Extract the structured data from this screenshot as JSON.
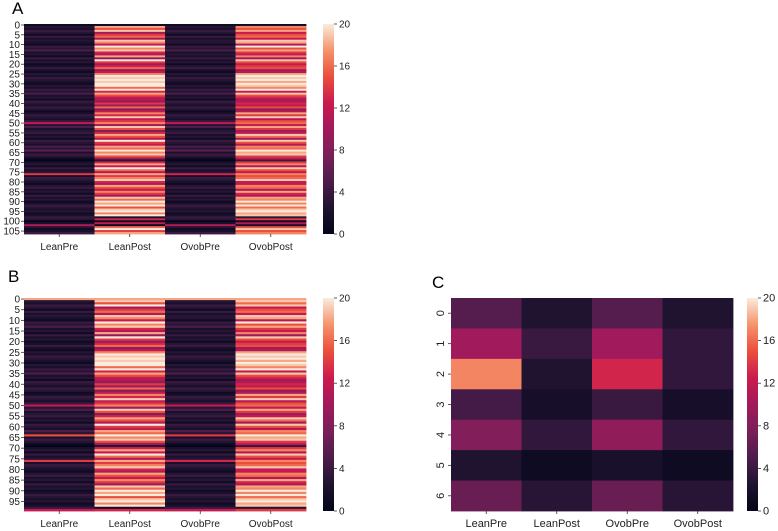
{
  "chart_data": [
    {
      "panel": "A",
      "type": "heatmap",
      "columns": [
        "LeanPre",
        "LeanPost",
        "OvobPre",
        "OvobPost"
      ],
      "row_tick_labels": [
        "0",
        "5",
        "10",
        "15",
        "20",
        "25",
        "30",
        "35",
        "40",
        "45",
        "50",
        "55",
        "60",
        "65",
        "70",
        "75",
        "80",
        "85",
        "90",
        "95",
        "100",
        "105"
      ],
      "row_count": 107,
      "row_tick_step": 5,
      "colorbar": {
        "min": 0,
        "max": 20,
        "ticks": [
          0,
          4,
          8,
          12,
          16,
          20
        ]
      },
      "colormap": "rocket",
      "values": [
        [
          1,
          1,
          1,
          1
        ],
        [
          3,
          18,
          3,
          17
        ],
        [
          2,
          15,
          2,
          15
        ],
        [
          4,
          19,
          4,
          18
        ],
        [
          3,
          10,
          3,
          12
        ],
        [
          1,
          14,
          1,
          15
        ],
        [
          4,
          16,
          4,
          16
        ],
        [
          2,
          11,
          2,
          12
        ],
        [
          3,
          19,
          3,
          19
        ],
        [
          2,
          17,
          3,
          18
        ],
        [
          1,
          12,
          1,
          11
        ],
        [
          4,
          20,
          4,
          20
        ],
        [
          3,
          17,
          3,
          15
        ],
        [
          5,
          19,
          5,
          18
        ],
        [
          2,
          13,
          2,
          14
        ],
        [
          3,
          11,
          3,
          12
        ],
        [
          1,
          18,
          2,
          17
        ],
        [
          4,
          9,
          4,
          10
        ],
        [
          2,
          20,
          2,
          19
        ],
        [
          3,
          14,
          3,
          15
        ],
        [
          1,
          10,
          1,
          12
        ],
        [
          2,
          13,
          3,
          14
        ],
        [
          4,
          16,
          4,
          15
        ],
        [
          2,
          9,
          2,
          10
        ],
        [
          1,
          12,
          1,
          11
        ],
        [
          3,
          17,
          3,
          18
        ],
        [
          2,
          20,
          2,
          20
        ],
        [
          4,
          19,
          4,
          19
        ],
        [
          3,
          20,
          3,
          20
        ],
        [
          2,
          19,
          2,
          18
        ],
        [
          1,
          20,
          1,
          20
        ],
        [
          3,
          20,
          3,
          19
        ],
        [
          2,
          16,
          2,
          17
        ],
        [
          4,
          20,
          4,
          20
        ],
        [
          3,
          13,
          3,
          12
        ],
        [
          5,
          18,
          5,
          19
        ],
        [
          2,
          15,
          2,
          15
        ],
        [
          3,
          12,
          3,
          13
        ],
        [
          1,
          11,
          1,
          10
        ],
        [
          4,
          9,
          4,
          11
        ],
        [
          3,
          14,
          3,
          13
        ],
        [
          2,
          10,
          2,
          12
        ],
        [
          4,
          16,
          4,
          15
        ],
        [
          3,
          8,
          3,
          9
        ],
        [
          1,
          12,
          1,
          11
        ],
        [
          2,
          17,
          2,
          18
        ],
        [
          4,
          13,
          4,
          14
        ],
        [
          3,
          19,
          3,
          19
        ],
        [
          2,
          12,
          2,
          11
        ],
        [
          4,
          14,
          4,
          15
        ],
        [
          12,
          17,
          12,
          16
        ],
        [
          3,
          10,
          3,
          12
        ],
        [
          5,
          19,
          5,
          18
        ],
        [
          2,
          15,
          2,
          14
        ],
        [
          3,
          8,
          3,
          10
        ],
        [
          4,
          13,
          4,
          12
        ],
        [
          2,
          18,
          2,
          19
        ],
        [
          3,
          15,
          3,
          16
        ],
        [
          1,
          11,
          1,
          10
        ],
        [
          4,
          20,
          4,
          19
        ],
        [
          3,
          14,
          3,
          15
        ],
        [
          2,
          12,
          2,
          11
        ],
        [
          5,
          18,
          5,
          17
        ],
        [
          3,
          16,
          3,
          16
        ],
        [
          6,
          20,
          6,
          20
        ],
        [
          2,
          17,
          2,
          18
        ],
        [
          4,
          19,
          4,
          19
        ],
        [
          3,
          15,
          3,
          14
        ],
        [
          1,
          10,
          1,
          12
        ],
        [
          0,
          3,
          0,
          4
        ],
        [
          2,
          13,
          2,
          14
        ],
        [
          3,
          18,
          3,
          17
        ],
        [
          1,
          12,
          1,
          11
        ],
        [
          4,
          20,
          4,
          19
        ],
        [
          2,
          16,
          2,
          15
        ],
        [
          3,
          11,
          3,
          12
        ],
        [
          14,
          18,
          13,
          17
        ],
        [
          2,
          14,
          2,
          15
        ],
        [
          4,
          17,
          4,
          16
        ],
        [
          3,
          19,
          3,
          19
        ],
        [
          2,
          13,
          2,
          12
        ],
        [
          1,
          11,
          1,
          12
        ],
        [
          3,
          18,
          3,
          17
        ],
        [
          4,
          15,
          4,
          16
        ],
        [
          2,
          12,
          2,
          11
        ],
        [
          3,
          17,
          3,
          18
        ],
        [
          1,
          14,
          1,
          13
        ],
        [
          4,
          10,
          4,
          11
        ],
        [
          2,
          19,
          2,
          18
        ],
        [
          3,
          16,
          3,
          17
        ],
        [
          1,
          20,
          1,
          20
        ],
        [
          2,
          18,
          2,
          17
        ],
        [
          4,
          20,
          4,
          20
        ],
        [
          3,
          15,
          3,
          16
        ],
        [
          2,
          19,
          2,
          19
        ],
        [
          3,
          20,
          3,
          20
        ],
        [
          1,
          17,
          1,
          18
        ],
        [
          2,
          20,
          2,
          19
        ],
        [
          4,
          2,
          4,
          3
        ],
        [
          3,
          13,
          3,
          14
        ],
        [
          0,
          1,
          0,
          1
        ],
        [
          2,
          12,
          2,
          11
        ],
        [
          11,
          1,
          11,
          2
        ],
        [
          3,
          16,
          3,
          15
        ],
        [
          1,
          20,
          1,
          19
        ],
        [
          2,
          14,
          2,
          15
        ],
        [
          4,
          18,
          4,
          17
        ]
      ]
    },
    {
      "panel": "B",
      "type": "heatmap",
      "columns": [
        "LeanPre",
        "LeanPost",
        "OvobPre",
        "OvobPost"
      ],
      "row_tick_labels": [
        "0",
        "5",
        "10",
        "15",
        "20",
        "25",
        "30",
        "35",
        "40",
        "45",
        "50",
        "55",
        "60",
        "65",
        "70",
        "75",
        "80",
        "85",
        "90",
        "95"
      ],
      "row_count": 100,
      "row_tick_step": 5,
      "colorbar": {
        "min": 0,
        "max": 20,
        "ticks": [
          0,
          4,
          8,
          12,
          16,
          20
        ]
      },
      "colormap": "rocket",
      "values": [
        [
          18,
          18,
          18,
          18
        ],
        [
          3,
          19,
          3,
          19
        ],
        [
          2,
          15,
          2,
          16
        ],
        [
          4,
          20,
          4,
          19
        ],
        [
          3,
          10,
          3,
          12
        ],
        [
          1,
          14,
          1,
          15
        ],
        [
          4,
          16,
          4,
          16
        ],
        [
          2,
          11,
          2,
          12
        ],
        [
          3,
          19,
          3,
          19
        ],
        [
          2,
          17,
          3,
          18
        ],
        [
          1,
          12,
          1,
          11
        ],
        [
          4,
          20,
          4,
          20
        ],
        [
          3,
          17,
          3,
          15
        ],
        [
          5,
          19,
          5,
          18
        ],
        [
          2,
          13,
          2,
          14
        ],
        [
          3,
          11,
          3,
          12
        ],
        [
          1,
          18,
          2,
          17
        ],
        [
          4,
          9,
          4,
          10
        ],
        [
          2,
          20,
          2,
          19
        ],
        [
          3,
          14,
          3,
          15
        ],
        [
          1,
          10,
          1,
          12
        ],
        [
          2,
          13,
          3,
          14
        ],
        [
          4,
          16,
          4,
          15
        ],
        [
          2,
          9,
          2,
          10
        ],
        [
          1,
          12,
          1,
          11
        ],
        [
          3,
          17,
          3,
          18
        ],
        [
          2,
          20,
          2,
          20
        ],
        [
          4,
          19,
          4,
          19
        ],
        [
          3,
          20,
          3,
          20
        ],
        [
          2,
          19,
          2,
          18
        ],
        [
          1,
          20,
          1,
          20
        ],
        [
          3,
          20,
          3,
          19
        ],
        [
          2,
          16,
          2,
          17
        ],
        [
          4,
          20,
          4,
          20
        ],
        [
          3,
          13,
          3,
          12
        ],
        [
          5,
          18,
          5,
          19
        ],
        [
          2,
          15,
          2,
          15
        ],
        [
          3,
          12,
          3,
          13
        ],
        [
          1,
          11,
          1,
          10
        ],
        [
          4,
          9,
          4,
          11
        ],
        [
          3,
          14,
          3,
          13
        ],
        [
          2,
          10,
          2,
          12
        ],
        [
          4,
          16,
          4,
          15
        ],
        [
          3,
          8,
          3,
          9
        ],
        [
          1,
          12,
          1,
          11
        ],
        [
          2,
          17,
          2,
          18
        ],
        [
          4,
          13,
          4,
          14
        ],
        [
          3,
          19,
          3,
          19
        ],
        [
          2,
          12,
          2,
          11
        ],
        [
          4,
          14,
          4,
          15
        ],
        [
          12,
          17,
          12,
          16
        ],
        [
          3,
          10,
          3,
          12
        ],
        [
          5,
          19,
          5,
          18
        ],
        [
          2,
          15,
          2,
          14
        ],
        [
          3,
          8,
          3,
          10
        ],
        [
          4,
          13,
          4,
          12
        ],
        [
          2,
          18,
          2,
          19
        ],
        [
          3,
          15,
          3,
          16
        ],
        [
          1,
          11,
          1,
          10
        ],
        [
          4,
          20,
          4,
          19
        ],
        [
          3,
          14,
          3,
          15
        ],
        [
          2,
          12,
          2,
          11
        ],
        [
          5,
          18,
          5,
          17
        ],
        [
          3,
          16,
          3,
          16
        ],
        [
          15,
          20,
          14,
          20
        ],
        [
          2,
          17,
          2,
          18
        ],
        [
          4,
          19,
          4,
          19
        ],
        [
          3,
          15,
          3,
          14
        ],
        [
          1,
          10,
          1,
          12
        ],
        [
          0,
          3,
          0,
          4
        ],
        [
          2,
          13,
          2,
          14
        ],
        [
          3,
          18,
          3,
          17
        ],
        [
          1,
          12,
          1,
          11
        ],
        [
          4,
          20,
          4,
          19
        ],
        [
          2,
          16,
          2,
          15
        ],
        [
          3,
          11,
          3,
          12
        ],
        [
          14,
          18,
          13,
          17
        ],
        [
          2,
          14,
          2,
          15
        ],
        [
          4,
          17,
          4,
          16
        ],
        [
          3,
          19,
          3,
          19
        ],
        [
          2,
          13,
          2,
          12
        ],
        [
          1,
          11,
          1,
          12
        ],
        [
          3,
          18,
          3,
          17
        ],
        [
          4,
          15,
          4,
          16
        ],
        [
          2,
          12,
          2,
          11
        ],
        [
          3,
          17,
          3,
          18
        ],
        [
          1,
          14,
          1,
          13
        ],
        [
          4,
          10,
          4,
          11
        ],
        [
          2,
          19,
          2,
          18
        ],
        [
          3,
          16,
          3,
          17
        ],
        [
          1,
          20,
          1,
          20
        ],
        [
          2,
          18,
          2,
          17
        ],
        [
          4,
          20,
          4,
          20
        ],
        [
          3,
          15,
          3,
          16
        ],
        [
          2,
          19,
          2,
          19
        ],
        [
          3,
          20,
          3,
          20
        ],
        [
          1,
          17,
          1,
          18
        ],
        [
          2,
          20,
          2,
          19
        ],
        [
          4,
          2,
          4,
          3
        ],
        [
          12,
          13,
          12,
          14
        ]
      ]
    },
    {
      "panel": "C",
      "type": "heatmap",
      "columns": [
        "LeanPre",
        "LeanPost",
        "OvobPre",
        "OvobPost"
      ],
      "row_tick_labels": [
        "0",
        "1",
        "2",
        "3",
        "4",
        "5",
        "6"
      ],
      "row_count": 7,
      "row_tick_step": 1,
      "colorbar": {
        "min": 0,
        "max": 20,
        "ticks": [
          0,
          4,
          8,
          12,
          16,
          20
        ]
      },
      "colormap": "rocket",
      "values": [
        [
          5.5,
          2.5,
          5.5,
          2.5
        ],
        [
          10,
          4,
          10,
          3.5
        ],
        [
          17,
          2.5,
          13,
          3.5
        ],
        [
          4.5,
          1.8,
          4,
          1.8
        ],
        [
          8,
          3.5,
          9,
          3.5
        ],
        [
          2.5,
          1,
          2,
          1
        ],
        [
          6.5,
          3,
          6.5,
          3
        ]
      ]
    }
  ]
}
